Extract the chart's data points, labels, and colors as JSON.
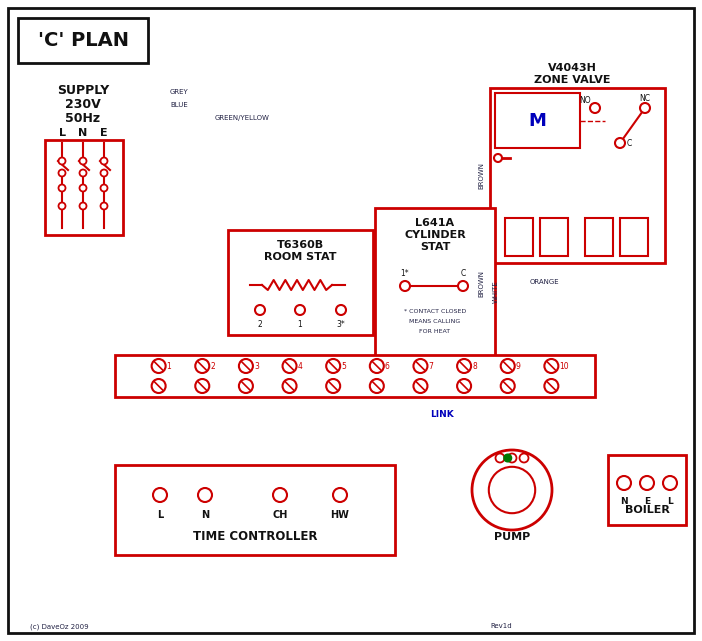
{
  "bg_color": "#ffffff",
  "red": "#cc0000",
  "blue": "#0000bb",
  "green": "#007700",
  "black": "#111111",
  "brown": "#7B3F00",
  "grey": "#888888",
  "orange": "#cc6600",
  "green_yellow": "#88aa00",
  "label_color": "#222244",
  "title": "'C' PLAN",
  "zone_valve_title1": "V4043H",
  "zone_valve_title2": "ZONE VALVE",
  "room_stat_title1": "T6360B",
  "room_stat_title2": "ROOM STAT",
  "cyl_stat_title1": "L641A",
  "cyl_stat_title2": "CYLINDER",
  "cyl_stat_title3": "STAT",
  "time_ctrl_title": "TIME CONTROLLER",
  "pump_title": "PUMP",
  "boiler_title": "BOILER",
  "link_text": "LINK",
  "contact_note1": "* CONTACT CLOSED",
  "contact_note2": "MEANS CALLING",
  "contact_note3": "FOR HEAT",
  "copyright": "(c) DaveOz 2009",
  "rev": "Rev1d"
}
